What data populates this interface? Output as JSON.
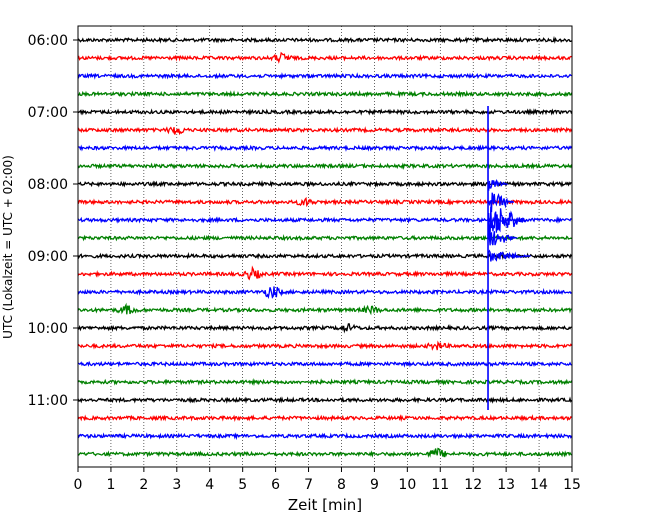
{
  "chart_data": {
    "type": "line",
    "xlabel": "Zeit  [min]",
    "ylabel": "UTC (Lokalzeit = UTC + 02:00)",
    "xlim": [
      0,
      15
    ],
    "xticks": [
      0,
      1,
      2,
      3,
      4,
      5,
      6,
      7,
      8,
      9,
      10,
      11,
      12,
      13,
      14,
      15
    ],
    "ytick_labels": [
      "06:00",
      "07:00",
      "08:00",
      "09:00",
      "10:00",
      "11:00"
    ],
    "ytick_rows": [
      0,
      4,
      8,
      12,
      16,
      20
    ],
    "grid": "vertical dotted",
    "row_colors": [
      "#000000",
      "#ff0000",
      "#0000ff",
      "#008000"
    ],
    "row_count": 24,
    "traces_per_row_minutes": 15,
    "event_time_min": 12.45,
    "events": [
      {
        "row": 1,
        "x": 6.2,
        "amp": 4
      },
      {
        "row": 5,
        "x": 3.0,
        "amp": 4
      },
      {
        "row": 9,
        "x": 6.9,
        "amp": 3
      },
      {
        "row": 13,
        "x": 5.3,
        "amp": 5
      },
      {
        "row": 14,
        "x": 5.9,
        "amp": 6
      },
      {
        "row": 15,
        "x": 1.5,
        "amp": 4
      },
      {
        "row": 15,
        "x": 8.9,
        "amp": 3
      },
      {
        "row": 16,
        "x": 8.2,
        "amp": 3
      },
      {
        "row": 17,
        "x": 10.9,
        "amp": 3
      },
      {
        "row": 23,
        "x": 10.9,
        "amp": 5
      }
    ],
    "quake": {
      "x": 12.45,
      "top_row": 4,
      "bottom_row": 20,
      "main_row": 10,
      "coda_rows": [
        {
          "row": 8,
          "amp": 6,
          "len": 0.6
        },
        {
          "row": 9,
          "amp": 12,
          "len": 0.8
        },
        {
          "row": 10,
          "amp": 20,
          "len": 1.2
        },
        {
          "row": 11,
          "amp": 10,
          "len": 0.9
        },
        {
          "row": 12,
          "amp": 6,
          "len": 1.3
        }
      ]
    }
  }
}
